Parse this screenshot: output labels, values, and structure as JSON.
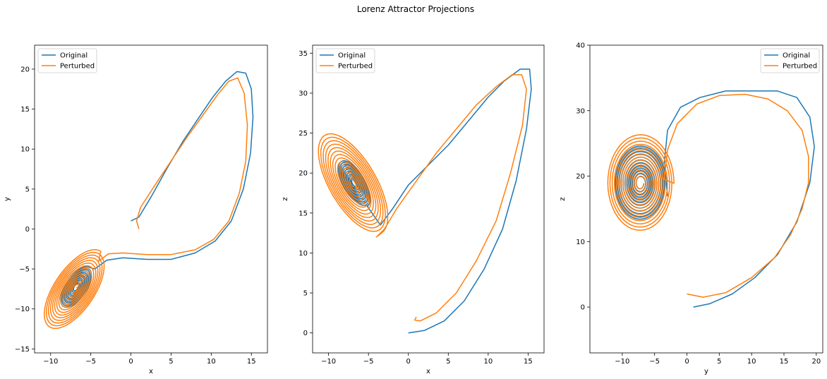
{
  "figure": {
    "title": "Lorenz Attractor Projections"
  },
  "chart_data": [
    {
      "type": "line",
      "xlabel": "x",
      "ylabel": "y",
      "xlim": [
        -12,
        17
      ],
      "ylim": [
        -15.5,
        23
      ],
      "xticks": [
        -10,
        -5,
        0,
        5,
        10,
        15
      ],
      "yticks": [
        -15,
        -10,
        -5,
        0,
        5,
        10,
        15,
        20
      ],
      "grid": false,
      "legend_position": "upper-left",
      "series": [
        {
          "name": "Original",
          "color": "#1f77b4",
          "x": [
            0.0,
            1.0,
            2.5,
            4.5,
            6.5,
            8.5,
            10.2,
            11.8,
            13.2,
            14.3,
            15.0,
            15.2,
            14.9,
            14.0,
            12.5,
            10.5,
            8.0,
            5.0,
            2.0,
            -1.0,
            -3.0,
            -4.5
          ],
          "y": [
            1.0,
            1.5,
            4.0,
            7.6,
            11.0,
            14.0,
            16.5,
            18.5,
            19.7,
            19.5,
            17.5,
            14.0,
            9.5,
            5.0,
            1.0,
            -1.5,
            -3.0,
            -3.8,
            -3.8,
            -3.6,
            -3.9,
            -5.0
          ],
          "spiral": {
            "center": [
              -6.8,
              -7.3
            ],
            "r_min": 0.4,
            "r_max": 3.0,
            "tilt_deg": 56,
            "aspect": 0.45,
            "turns": 12
          }
        },
        {
          "name": "Perturbed",
          "color": "#ff7f0e",
          "x": [
            1.0,
            0.7,
            1.2,
            3.0,
            5.0,
            7.0,
            9.0,
            10.8,
            12.2,
            13.3,
            14.1,
            14.5,
            14.3,
            13.5,
            12.2,
            10.3,
            8.0,
            5.0,
            2.0,
            -1.0,
            -2.8,
            -4.0
          ],
          "y": [
            0.0,
            1.0,
            2.7,
            5.5,
            8.5,
            11.5,
            14.3,
            16.8,
            18.5,
            18.9,
            17.0,
            13.0,
            8.5,
            4.5,
            1.0,
            -1.3,
            -2.6,
            -3.2,
            -3.2,
            -3.0,
            -3.1,
            -4.0
          ],
          "spiral": {
            "center": [
              -7.0,
              -7.6
            ],
            "r_min": 0.4,
            "r_max": 5.8,
            "tilt_deg": 56,
            "aspect": 0.45,
            "turns": 14
          }
        }
      ]
    },
    {
      "type": "line",
      "xlabel": "x",
      "ylabel": "z",
      "xlim": [
        -12,
        17
      ],
      "ylim": [
        -2.5,
        36
      ],
      "xticks": [
        -10,
        -5,
        0,
        5,
        10,
        15
      ],
      "yticks": [
        0,
        5,
        10,
        15,
        20,
        25,
        30,
        35
      ],
      "grid": false,
      "legend_position": "upper-left",
      "series": [
        {
          "name": "Original",
          "color": "#1f77b4",
          "x": [
            0.0,
            2.0,
            4.5,
            7.0,
            9.5,
            11.8,
            13.5,
            14.8,
            15.4,
            15.2,
            14.0,
            12.0,
            10.0,
            7.5,
            5.0,
            2.5,
            0.0,
            -2.0,
            -3.5
          ],
          "z": [
            0.0,
            0.3,
            1.5,
            4.0,
            8.0,
            13.0,
            19.0,
            25.5,
            30.5,
            33.0,
            33.0,
            31.5,
            29.5,
            26.5,
            23.5,
            21.0,
            18.5,
            15.5,
            13.5
          ],
          "spiral": {
            "center": [
              -6.8,
              18.7
            ],
            "r_min": 0.4,
            "r_max": 3.3,
            "tilt_deg": -60,
            "aspect": 0.42,
            "turns": 12
          }
        },
        {
          "name": "Perturbed",
          "color": "#ff7f0e",
          "x": [
            1.0,
            0.8,
            1.5,
            3.5,
            6.0,
            8.5,
            11.0,
            12.8,
            14.3,
            14.8,
            14.2,
            13.0,
            11.0,
            8.5,
            6.0,
            3.5,
            1.0,
            -1.5,
            -3.0,
            -4.0
          ],
          "z": [
            2.0,
            1.6,
            1.5,
            2.5,
            5.0,
            9.0,
            14.0,
            20.0,
            26.0,
            30.5,
            32.3,
            32.3,
            30.8,
            28.5,
            25.5,
            22.5,
            19.0,
            15.5,
            13.0,
            12.0
          ],
          "spiral": {
            "center": [
              -7.0,
              18.7
            ],
            "r_min": 0.4,
            "r_max": 7.2,
            "tilt_deg": -60,
            "aspect": 0.42,
            "turns": 14
          }
        }
      ]
    },
    {
      "type": "line",
      "xlabel": "y",
      "ylabel": "z",
      "xlim": [
        -15,
        21
      ],
      "ylim": [
        -7,
        40
      ],
      "xticks": [
        -10,
        -5,
        0,
        5,
        10,
        15,
        20
      ],
      "yticks": [
        0,
        10,
        20,
        30,
        40
      ],
      "grid": false,
      "legend_position": "upper-right",
      "series": [
        {
          "name": "Original",
          "color": "#1f77b4",
          "x": [
            1.0,
            3.5,
            7.0,
            10.5,
            14.0,
            17.0,
            19.0,
            19.7,
            19.0,
            17.0,
            14.0,
            10.0,
            6.0,
            2.0,
            -1.0,
            -3.0,
            -3.5,
            -3.0
          ],
          "z": [
            0.0,
            0.5,
            2.0,
            4.5,
            8.0,
            13.0,
            19.0,
            24.5,
            29.0,
            32.0,
            33.0,
            33.0,
            33.0,
            32.0,
            30.5,
            27.0,
            22.0,
            17.0
          ],
          "spiral": {
            "center": [
              -7.2,
              18.9
            ],
            "r_min": 0.5,
            "r_max": 4.0,
            "tilt_deg": 0,
            "aspect": 1.45,
            "turns": 12
          }
        },
        {
          "name": "Perturbed",
          "color": "#ff7f0e",
          "x": [
            0.0,
            2.5,
            6.0,
            10.0,
            13.5,
            16.0,
            17.8,
            18.8,
            18.8,
            17.8,
            15.5,
            12.5,
            9.0,
            5.0,
            1.5,
            -1.5,
            -3.0,
            -3.5
          ],
          "z": [
            2.0,
            1.5,
            2.2,
            4.5,
            7.5,
            11.0,
            15.0,
            19.0,
            23.0,
            27.0,
            30.0,
            31.8,
            32.5,
            32.3,
            31.0,
            28.0,
            24.0,
            19.5
          ],
          "spiral": {
            "center": [
              -7.2,
              18.9
            ],
            "r_min": 0.5,
            "r_max": 5.2,
            "tilt_deg": 0,
            "aspect": 1.45,
            "turns": 14
          }
        }
      ]
    }
  ]
}
